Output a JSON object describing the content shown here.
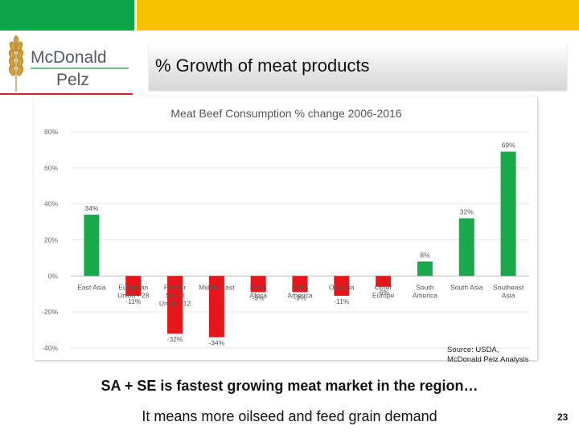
{
  "header": {
    "logo_line1": "McDonald",
    "logo_line2": "Pelz",
    "slide_title": "% Growth of meat products"
  },
  "chart_data": {
    "type": "bar",
    "title": "Meat Beef Consumption  % change 2006-2016",
    "categories": [
      "East Asia",
      "European Union - 28",
      "Former Soviet Union - 12",
      "Middle East",
      "North Africa",
      "North America",
      "Oceania",
      "Other Europe",
      "South America",
      "South Asia",
      "Southeast Asia"
    ],
    "category_lines": [
      [
        "East Asia"
      ],
      [
        "European",
        "Union - 28"
      ],
      [
        "Former",
        "Soviet",
        "Union - 12"
      ],
      [
        "Middle East"
      ],
      [
        "North",
        "Africa"
      ],
      [
        "North",
        "America"
      ],
      [
        "Oceania"
      ],
      [
        "Other",
        "Europe"
      ],
      [
        "South",
        "America"
      ],
      [
        "South Asia"
      ],
      [
        "Southeast",
        "Asia"
      ]
    ],
    "values": [
      34,
      -11,
      -32,
      -34,
      -9,
      -9,
      -11,
      -6,
      8,
      32,
      69
    ],
    "data_labels": [
      "34%",
      "-11%",
      "-32%",
      "-34%",
      "-9%",
      "-9%",
      "-11%",
      "-6%",
      "8%",
      "32%",
      "69%"
    ],
    "ylim": [
      -40,
      80
    ],
    "yticks": [
      -40,
      -20,
      0,
      20,
      40,
      60,
      80
    ],
    "ytick_labels": [
      "-40%",
      "-20%",
      "0%",
      "20%",
      "40%",
      "60%",
      "80%"
    ],
    "grid": true,
    "positive_color": "#19a84c",
    "negative_color": "#e8161b"
  },
  "source": {
    "line1": "Source: USDA,",
    "line2": "McDonald Pelz Analysis"
  },
  "captions": {
    "headline": "SA + SE is fastest growing meat market in the region…",
    "subline": "It means more oilseed and feed grain demand"
  },
  "page_number": "23",
  "colors": {
    "brand_green": "#0ea54a",
    "brand_yellow": "#f8c200",
    "brand_red": "#d21f2b"
  }
}
